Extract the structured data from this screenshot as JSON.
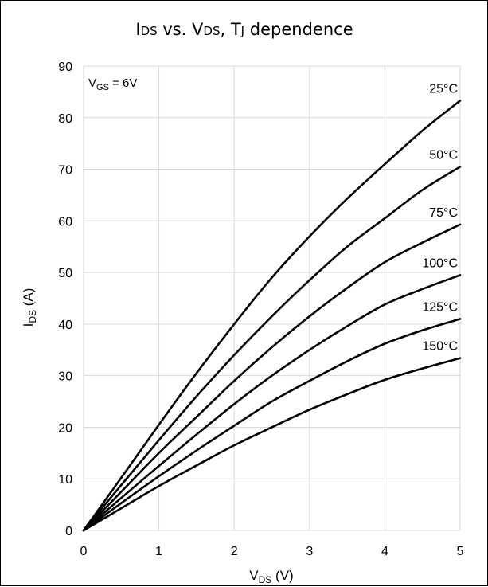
{
  "chart_data": {
    "type": "line",
    "title": {
      "main": "I",
      "sub1": "DS",
      "mid1": " vs. V",
      "sub2": "DS",
      "mid2": ", T",
      "sub3": "J",
      "tail": " dependence"
    },
    "xlabel": {
      "main": "V",
      "sub": "DS",
      "tail": " (V)"
    },
    "ylabel": {
      "main": "I",
      "sub": "DS",
      "tail": " (A)"
    },
    "annotation": {
      "main": "V",
      "sub": "GS",
      "tail": " = 6V"
    },
    "xlim": [
      0,
      5
    ],
    "ylim": [
      0,
      90
    ],
    "x_ticks": [
      "0",
      "1",
      "2",
      "3",
      "4",
      "5"
    ],
    "y_ticks": [
      "0",
      "10",
      "20",
      "30",
      "40",
      "50",
      "60",
      "70",
      "80",
      "90"
    ],
    "grid": true,
    "x": [
      0,
      0.5,
      1,
      1.5,
      2,
      2.5,
      3,
      3.5,
      4,
      4.5,
      5
    ],
    "series": [
      {
        "name": "25°C",
        "values": [
          0,
          10.2,
          20.5,
          30.5,
          40.0,
          49.0,
          57.0,
          64.3,
          71.0,
          77.5,
          83.3
        ]
      },
      {
        "name": "50°C",
        "values": [
          0,
          8.8,
          17.5,
          26.0,
          34.0,
          41.5,
          48.5,
          55.0,
          60.5,
          66.0,
          70.5
        ]
      },
      {
        "name": "75°C",
        "values": [
          0,
          7.5,
          15.0,
          22.0,
          29.0,
          35.5,
          41.5,
          47.0,
          52.0,
          55.8,
          59.3
        ]
      },
      {
        "name": "100°C",
        "values": [
          0,
          6.3,
          12.5,
          18.6,
          24.5,
          30.0,
          35.0,
          39.6,
          43.8,
          46.8,
          49.5
        ]
      },
      {
        "name": "125°C",
        "values": [
          0,
          5.3,
          10.5,
          15.5,
          20.3,
          25.0,
          29.0,
          32.8,
          36.2,
          38.8,
          41.0
        ]
      },
      {
        "name": "150°C",
        "values": [
          0,
          4.3,
          8.6,
          12.6,
          16.5,
          20.0,
          23.4,
          26.4,
          29.2,
          31.4,
          33.4
        ]
      }
    ]
  }
}
